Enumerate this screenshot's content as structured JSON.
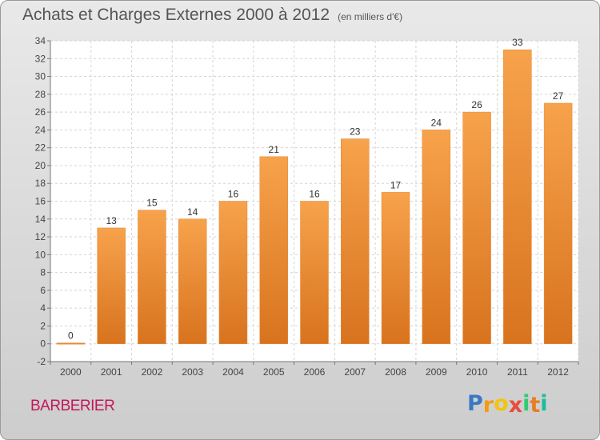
{
  "header": {
    "title": "Achats et Charges Externes 2000 à 2012",
    "subtitle": "(en milliers d'€)"
  },
  "commune": "BARBERIER",
  "logo": {
    "letters": [
      "P",
      "r",
      "o",
      "x",
      "i",
      "t",
      "i"
    ],
    "colors": [
      "#3a78c4",
      "#f39c12",
      "#f1c40f",
      "#e74c3c",
      "#2ecc71",
      "#e67e22",
      "#1abc9c"
    ]
  },
  "chart_data": {
    "type": "bar",
    "categories": [
      "2000",
      "2001",
      "2002",
      "2003",
      "2004",
      "2005",
      "2006",
      "2007",
      "2008",
      "2009",
      "2010",
      "2011",
      "2012"
    ],
    "values": [
      0,
      13,
      15,
      14,
      16,
      21,
      16,
      23,
      17,
      24,
      26,
      33,
      27
    ],
    "ylim": [
      -2,
      34
    ],
    "yticks": [
      -2,
      0,
      2,
      4,
      6,
      8,
      10,
      12,
      14,
      16,
      18,
      20,
      22,
      24,
      26,
      28,
      30,
      32,
      34
    ],
    "grid": true,
    "bar_color": "#f0902f"
  }
}
